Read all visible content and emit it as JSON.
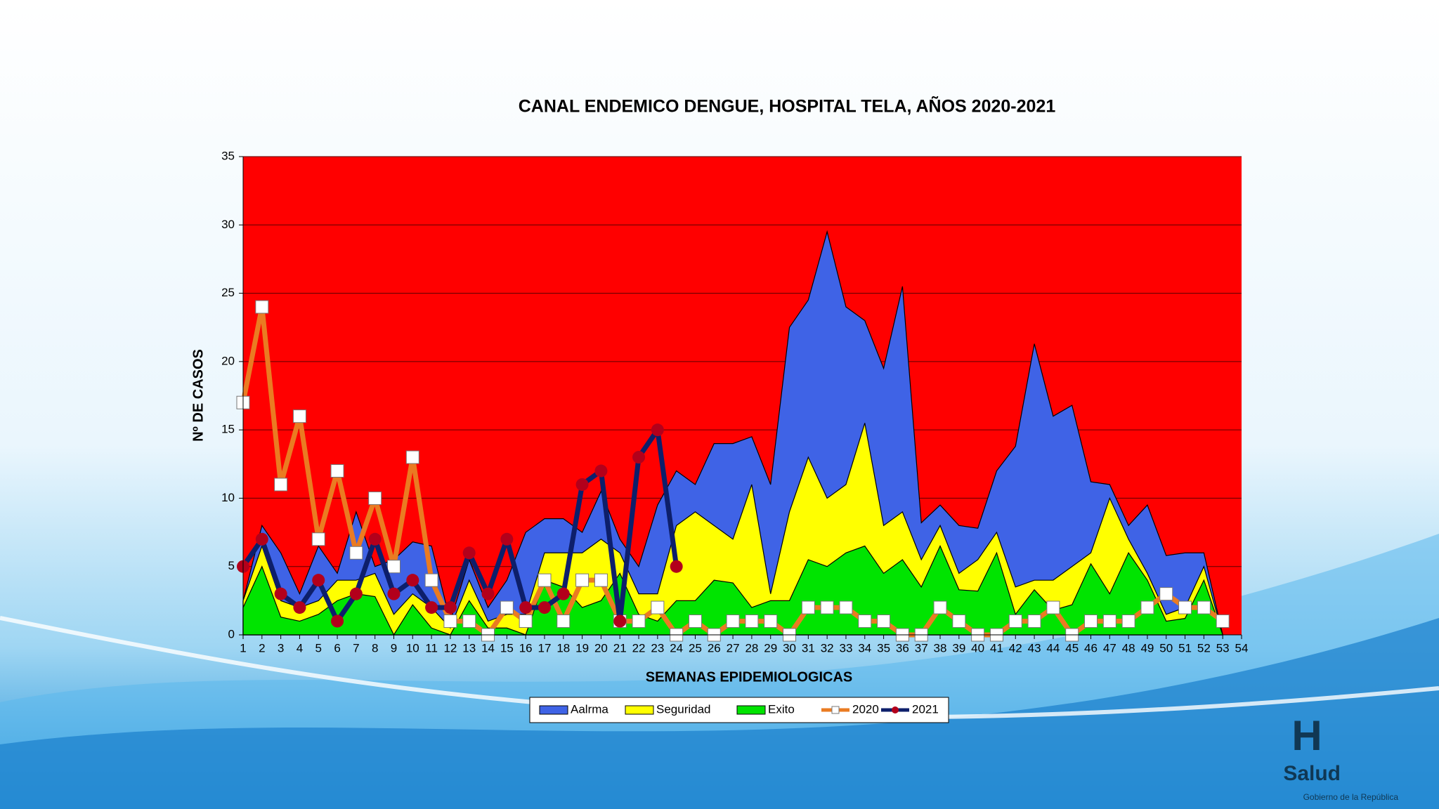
{
  "chart_data": {
    "type": "area-line",
    "title": "CANAL ENDEMICO  DENGUE, HOSPITAL TELA, AÑOS 2020-2021",
    "x_label": "SEMANAS EPIDEMIOLOGICAS",
    "y_label": "Nº DE CASOS",
    "x": [
      1,
      2,
      3,
      4,
      5,
      6,
      7,
      8,
      9,
      10,
      11,
      12,
      13,
      14,
      15,
      16,
      17,
      18,
      19,
      20,
      21,
      22,
      23,
      24,
      25,
      26,
      27,
      28,
      29,
      30,
      31,
      32,
      33,
      34,
      35,
      36,
      37,
      38,
      39,
      40,
      41,
      42,
      43,
      44,
      45,
      46,
      47,
      48,
      49,
      50,
      51,
      52,
      53
    ],
    "xlim": [
      1,
      54
    ],
    "xticks": [
      1,
      2,
      3,
      4,
      5,
      6,
      7,
      8,
      9,
      10,
      11,
      12,
      13,
      14,
      15,
      16,
      17,
      18,
      19,
      20,
      21,
      22,
      23,
      24,
      25,
      26,
      27,
      28,
      29,
      30,
      31,
      32,
      33,
      34,
      35,
      36,
      37,
      38,
      39,
      40,
      41,
      42,
      43,
      44,
      45,
      46,
      47,
      48,
      49,
      50,
      51,
      52,
      53,
      54
    ],
    "ylim": [
      0,
      35
    ],
    "yticks": [
      0,
      5,
      10,
      15,
      20,
      25,
      30,
      35
    ],
    "grid": true,
    "background_color": "#ff0000",
    "legend": "bottom",
    "series": [
      {
        "name": "Aalrma",
        "kind": "area",
        "color": "#3f63e6",
        "values": [
          2.5,
          8,
          6,
          3,
          6.5,
          4.5,
          9,
          5,
          5.5,
          6.8,
          6.5,
          1,
          5.5,
          2,
          4,
          7.5,
          8.5,
          8.5,
          7.5,
          10.5,
          7,
          5,
          9.5,
          12,
          11,
          14,
          14,
          14.5,
          11,
          22.5,
          24.5,
          29.5,
          24,
          23,
          19.5,
          25.5,
          8.2,
          9.5,
          8,
          7.8,
          12,
          13.8,
          21.3,
          16,
          16.8,
          11.2,
          11,
          8,
          9.5,
          5.8,
          6,
          6,
          0
        ]
      },
      {
        "name": "Seguridad",
        "kind": "area",
        "color": "#ffff00",
        "values": [
          2.5,
          6.5,
          2.5,
          2,
          2.5,
          4,
          4,
          4.5,
          1.5,
          3,
          2,
          0.5,
          4,
          1,
          1.5,
          1.5,
          6,
          6,
          6,
          7,
          6,
          3,
          3,
          8,
          9,
          8,
          7,
          11,
          3,
          9,
          13,
          10,
          11,
          15.5,
          8,
          9,
          5.5,
          8,
          4.5,
          5.5,
          7.5,
          3.5,
          4,
          4,
          5,
          6,
          10,
          7,
          4.5,
          1.5,
          2,
          5,
          0
        ]
      },
      {
        "name": "Exito",
        "kind": "area",
        "color": "#00e400",
        "values": [
          2,
          5,
          1.3,
          1,
          1.5,
          2.5,
          3,
          2.8,
          0,
          2.2,
          0.5,
          0,
          2.5,
          0.5,
          0.5,
          0,
          4,
          3.5,
          2,
          2.5,
          4.5,
          1.5,
          1,
          2.5,
          2.5,
          4,
          3.8,
          2,
          2.5,
          2.5,
          5.5,
          5,
          6,
          6.5,
          4.5,
          5.5,
          3.5,
          6.5,
          3.3,
          3.2,
          6,
          1.5,
          3.3,
          1.8,
          2.2,
          5.2,
          3,
          6,
          4,
          1,
          1.2,
          4,
          0
        ]
      },
      {
        "name": "2020",
        "kind": "line",
        "color": "#ea7b22",
        "marker": "square",
        "marker_color": "#ffffff",
        "values": [
          17,
          24,
          11,
          16,
          7,
          12,
          6,
          10,
          5,
          13,
          4,
          1,
          1,
          0,
          2,
          1,
          4,
          1,
          4,
          4,
          1,
          1,
          2,
          0,
          1,
          0,
          1,
          1,
          1,
          0,
          2,
          2,
          2,
          1,
          1,
          0,
          0,
          2,
          1,
          0,
          0,
          1,
          1,
          2,
          0,
          1,
          1,
          1,
          2,
          3,
          2,
          2,
          1
        ]
      },
      {
        "name": "2021",
        "kind": "line",
        "color": "#0d1f6b",
        "marker": "circle",
        "marker_color": "#b3001b",
        "values": [
          5,
          7,
          3,
          2,
          4,
          1,
          3,
          7,
          3,
          4,
          2,
          2,
          6,
          3,
          7,
          2,
          2,
          3,
          11,
          12,
          1,
          13,
          15,
          5,
          null,
          null,
          null,
          null,
          null,
          null,
          null,
          null,
          null,
          null,
          null,
          null,
          null,
          null,
          null,
          null,
          null,
          null,
          null,
          null,
          null,
          null,
          null,
          null,
          null,
          null,
          null,
          null,
          null
        ]
      }
    ]
  },
  "logo": {
    "mark": "H",
    "name": "Salud",
    "subtitle": "Gobierno de la República"
  }
}
